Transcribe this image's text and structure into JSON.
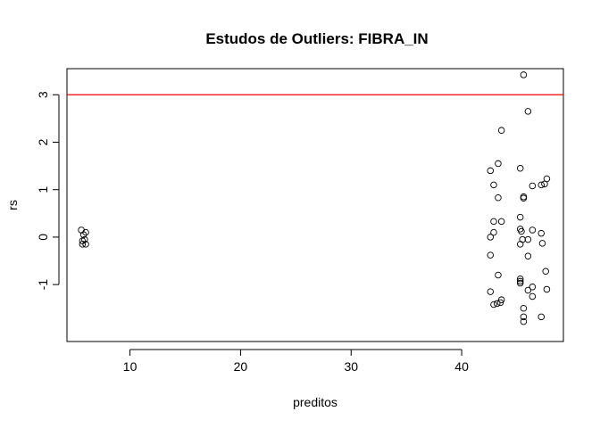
{
  "chart_data": {
    "type": "scatter",
    "title": "Estudos de Outliers:  FIBRA_IN",
    "xlabel": "preditos",
    "ylabel": "rs",
    "xlim": [
      4.3,
      49.2
    ],
    "ylim": [
      -2.2,
      3.55
    ],
    "x_ticks": [
      10,
      20,
      30,
      40
    ],
    "y_ticks": [
      -1,
      0,
      1,
      2,
      3
    ],
    "reference_line": {
      "y": 3,
      "color": "#ff0000"
    },
    "grid": false,
    "legend": "none",
    "points": [
      {
        "x": 5.6,
        "y": 0.15
      },
      {
        "x": 5.7,
        "y": -0.08
      },
      {
        "x": 5.8,
        "y": 0.05
      },
      {
        "x": 6.0,
        "y": 0.1
      },
      {
        "x": 5.7,
        "y": -0.15
      },
      {
        "x": 6.0,
        "y": -0.15
      },
      {
        "x": 5.9,
        "y": -0.05
      },
      {
        "x": 45.6,
        "y": 3.42
      },
      {
        "x": 46.0,
        "y": 2.65
      },
      {
        "x": 43.6,
        "y": 2.25
      },
      {
        "x": 43.3,
        "y": 1.55
      },
      {
        "x": 42.6,
        "y": 1.4
      },
      {
        "x": 45.3,
        "y": 1.45
      },
      {
        "x": 47.7,
        "y": 1.23
      },
      {
        "x": 47.5,
        "y": 1.12
      },
      {
        "x": 47.2,
        "y": 1.1
      },
      {
        "x": 46.4,
        "y": 1.08
      },
      {
        "x": 42.9,
        "y": 1.1
      },
      {
        "x": 43.3,
        "y": 0.83
      },
      {
        "x": 45.6,
        "y": 0.85
      },
      {
        "x": 45.6,
        "y": 0.82
      },
      {
        "x": 45.3,
        "y": 0.42
      },
      {
        "x": 42.9,
        "y": 0.33
      },
      {
        "x": 43.6,
        "y": 0.33
      },
      {
        "x": 45.3,
        "y": 0.17
      },
      {
        "x": 45.4,
        "y": 0.12
      },
      {
        "x": 46.4,
        "y": 0.15
      },
      {
        "x": 47.2,
        "y": 0.08
      },
      {
        "x": 42.9,
        "y": 0.1
      },
      {
        "x": 42.6,
        "y": 0.0
      },
      {
        "x": 45.5,
        "y": -0.05
      },
      {
        "x": 46.0,
        "y": -0.05
      },
      {
        "x": 45.3,
        "y": -0.15
      },
      {
        "x": 47.3,
        "y": -0.13
      },
      {
        "x": 42.6,
        "y": -0.38
      },
      {
        "x": 46.0,
        "y": -0.4
      },
      {
        "x": 47.6,
        "y": -0.72
      },
      {
        "x": 43.3,
        "y": -0.8
      },
      {
        "x": 45.3,
        "y": -0.88
      },
      {
        "x": 45.3,
        "y": -0.93
      },
      {
        "x": 45.3,
        "y": -0.97
      },
      {
        "x": 46.4,
        "y": -1.05
      },
      {
        "x": 46.0,
        "y": -1.12
      },
      {
        "x": 47.7,
        "y": -1.1
      },
      {
        "x": 42.6,
        "y": -1.15
      },
      {
        "x": 46.4,
        "y": -1.25
      },
      {
        "x": 43.6,
        "y": -1.32
      },
      {
        "x": 43.5,
        "y": -1.38
      },
      {
        "x": 43.2,
        "y": -1.4
      },
      {
        "x": 42.9,
        "y": -1.42
      },
      {
        "x": 45.6,
        "y": -1.5
      },
      {
        "x": 47.2,
        "y": -1.68
      },
      {
        "x": 45.6,
        "y": -1.68
      },
      {
        "x": 45.6,
        "y": -1.78
      }
    ]
  }
}
